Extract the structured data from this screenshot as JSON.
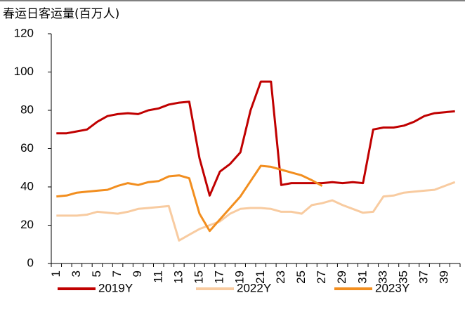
{
  "chart_data": {
    "type": "line",
    "title": "春运日客运量(百万人)",
    "categories": [
      "1",
      null,
      "3",
      null,
      "5",
      null,
      "7",
      null,
      "9",
      null,
      "11",
      null,
      "13",
      null,
      "15",
      null,
      "17",
      null,
      "19",
      null,
      "21",
      null,
      "23",
      null,
      "25",
      null,
      "27",
      null,
      "29",
      null,
      "31",
      null,
      "33",
      null,
      "35",
      null,
      "37",
      null,
      "39",
      null
    ],
    "series": [
      {
        "name": "2019Y",
        "color": "#c00000",
        "values": [
          68,
          68,
          69,
          70,
          74,
          77,
          78,
          78.5,
          78,
          80,
          81,
          83,
          84,
          84.5,
          55,
          35.5,
          48,
          52,
          58,
          80,
          95,
          95,
          41,
          42,
          42,
          42,
          42,
          42.5,
          42,
          42.5,
          42,
          70,
          71,
          71,
          72,
          74,
          77,
          78.5,
          79,
          79.5
        ]
      },
      {
        "name": "2022Y",
        "color": "#f8cba0",
        "values": [
          25,
          25,
          25,
          25.5,
          27,
          26.5,
          26,
          27,
          28.5,
          29,
          29.5,
          30,
          12,
          15,
          18,
          20,
          22,
          26,
          28.5,
          29,
          29,
          28.5,
          27,
          27,
          26,
          30.5,
          31.5,
          33,
          30.5,
          28.5,
          26.5,
          27,
          35,
          35.5,
          37,
          37.5,
          38,
          38.5,
          40.5,
          42.5
        ]
      },
      {
        "name": "2023Y",
        "color": "#f28e1f",
        "values": [
          35,
          35.5,
          37,
          37.5,
          38,
          38.5,
          40.5,
          42,
          41,
          42.5,
          43,
          45.5,
          46,
          44.5,
          26,
          17,
          23,
          29,
          35,
          43,
          51,
          50.5,
          49,
          47.5,
          46,
          43.5,
          40.5,
          null,
          null,
          null,
          null,
          null,
          null,
          null,
          null,
          null,
          null,
          null,
          null,
          null
        ]
      }
    ],
    "ylim": [
      0,
      120
    ],
    "yticks": [
      0,
      20,
      40,
      60,
      80,
      100,
      120
    ],
    "legend": "bottom"
  }
}
